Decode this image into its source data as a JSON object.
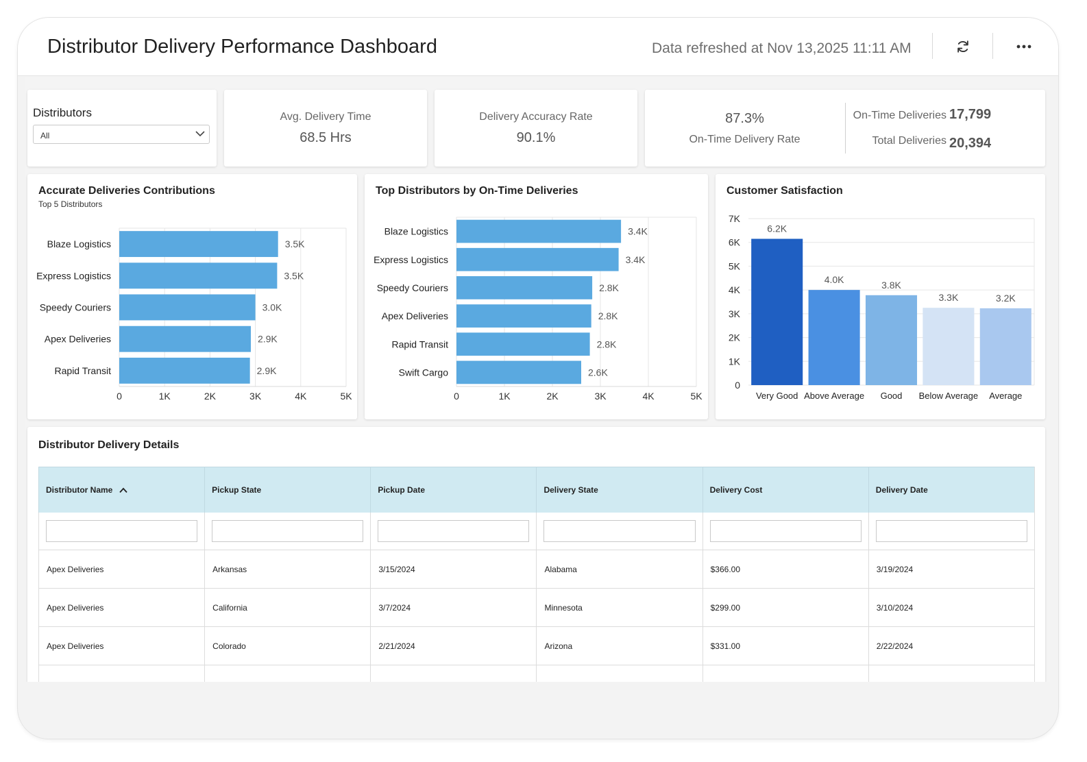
{
  "header": {
    "title": "Distributor Delivery Performance Dashboard",
    "refreshed": "Data refreshed at Nov 13,2025 11:11 AM",
    "refresh_icon": "refresh-icon",
    "more_icon": "more-options-icon"
  },
  "filter": {
    "label": "Distributors",
    "selected": "All"
  },
  "kpis": {
    "avg_delivery_time": {
      "label": "Avg. Delivery Time",
      "value": "68.5 Hrs"
    },
    "accuracy_rate": {
      "label": "Delivery Accuracy Rate",
      "value": "90.1%"
    },
    "on_time_rate": {
      "value": "87.3%",
      "label": "On-Time Delivery Rate"
    },
    "on_time_deliveries": {
      "label": "On-Time Deliveries",
      "value": "17,799"
    },
    "total_deliveries": {
      "label": "Total Deliveries",
      "value": "20,394"
    }
  },
  "colors": {
    "bar": "#5aa9e0",
    "satisfaction": [
      "#1f5fc2",
      "#4a90e2",
      "#7eb4e6",
      "#d4e3f5",
      "#a9c8ef"
    ],
    "table_header": "#d0eaf2"
  },
  "chart_data": [
    {
      "type": "bar",
      "orientation": "horizontal",
      "title": "Accurate Deliveries Contributions",
      "subtitle": "Top 5 Distributors",
      "categories": [
        "Blaze Logistics",
        "Express Logistics",
        "Speedy Couriers",
        "Apex Deliveries",
        "Rapid Transit"
      ],
      "values": [
        3500,
        3480,
        3000,
        2900,
        2880
      ],
      "data_labels": [
        "3.5K",
        "3.5K",
        "3.0K",
        "2.9K",
        "2.9K"
      ],
      "xlim": [
        0,
        5000
      ],
      "ticks": [
        "0",
        "1K",
        "2K",
        "3K",
        "4K",
        "5K"
      ],
      "grid": true
    },
    {
      "type": "bar",
      "orientation": "horizontal",
      "title": "Top Distributors by On-Time Deliveries",
      "categories": [
        "Blaze Logistics",
        "Express Logistics",
        "Speedy Couriers",
        "Apex Deliveries",
        "Rapid Transit",
        "Swift Cargo"
      ],
      "values": [
        3430,
        3380,
        2830,
        2810,
        2780,
        2600
      ],
      "data_labels": [
        "3.4K",
        "3.4K",
        "2.8K",
        "2.8K",
        "2.8K",
        "2.6K"
      ],
      "xlim": [
        0,
        5000
      ],
      "ticks": [
        "0",
        "1K",
        "2K",
        "3K",
        "4K",
        "5K"
      ],
      "grid": true
    },
    {
      "type": "bar",
      "orientation": "vertical",
      "title": "Customer Satisfaction",
      "categories": [
        "Very Good",
        "Above Average",
        "Good",
        "Below Average",
        "Average"
      ],
      "values": [
        6150,
        4000,
        3780,
        3250,
        3230
      ],
      "data_labels": [
        "6.2K",
        "4.0K",
        "3.8K",
        "3.3K",
        "3.2K"
      ],
      "ylim": [
        0,
        7000
      ],
      "ticks": [
        "0",
        "1K",
        "2K",
        "3K",
        "4K",
        "5K",
        "6K",
        "7K"
      ],
      "grid": true
    }
  ],
  "table": {
    "title": "Distributor Delivery Details",
    "columns": [
      "Distributor Name",
      "Pickup State",
      "Pickup Date",
      "Delivery State",
      "Delivery Cost",
      "Delivery Date"
    ],
    "sort_icon": "sort-ascending-icon",
    "rows": [
      [
        "Apex Deliveries",
        "Arkansas",
        "3/15/2024",
        "Alabama",
        "$366.00",
        "3/19/2024"
      ],
      [
        "Apex Deliveries",
        "California",
        "3/7/2024",
        "Minnesota",
        "$299.00",
        "3/10/2024"
      ],
      [
        "Apex Deliveries",
        "Colorado",
        "2/21/2024",
        "Arizona",
        "$331.00",
        "2/22/2024"
      ]
    ]
  }
}
